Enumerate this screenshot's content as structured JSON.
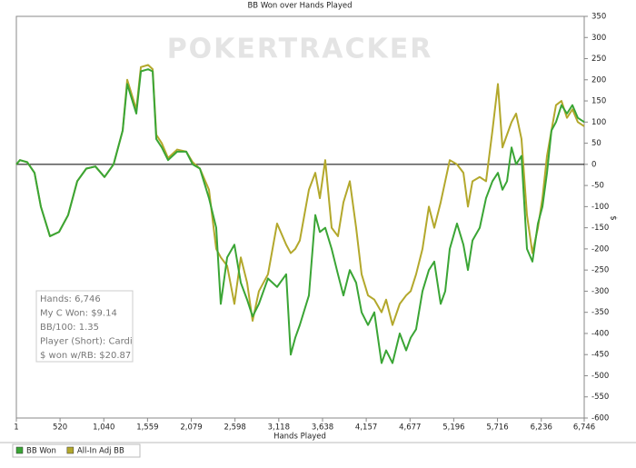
{
  "chart_data": {
    "type": "line",
    "title": "BB Won over Hands Played",
    "watermark": "POKERTRACKER",
    "x_label": "Hands Played",
    "y_label": "$",
    "x": [
      1,
      44,
      131,
      217,
      292,
      400,
      508,
      616,
      724,
      832,
      940,
      1048,
      1156,
      1264,
      1318,
      1426,
      1480,
      1566,
      1620,
      1663,
      1728,
      1803,
      1911,
      2019,
      2095,
      2181,
      2289,
      2375,
      2429,
      2505,
      2591,
      2667,
      2742,
      2807,
      2882,
      2990,
      3098,
      3206,
      3260,
      3314,
      3368,
      3476,
      3552,
      3606,
      3670,
      3746,
      3821,
      3886,
      3962,
      4037,
      4102,
      4178,
      4253,
      4339,
      4393,
      4469,
      4555,
      4631,
      4685,
      4749,
      4825,
      4901,
      4965,
      5041,
      5095,
      5149,
      5235,
      5311,
      5365,
      5419,
      5505,
      5580,
      5656,
      5721,
      5775,
      5829,
      5883,
      5937,
      6001,
      6066,
      6131,
      6196,
      6250,
      6304,
      6357,
      6411,
      6476,
      6541,
      6606,
      6670,
      6746
    ],
    "series": [
      {
        "name": "BB Won",
        "color": "#3aa535",
        "values": [
          0,
          10,
          5,
          -20,
          -100,
          -170,
          -160,
          -120,
          -40,
          -10,
          -5,
          -30,
          0,
          80,
          190,
          120,
          220,
          225,
          220,
          60,
          40,
          10,
          30,
          30,
          0,
          -10,
          -80,
          -150,
          -330,
          -220,
          -190,
          -280,
          -320,
          -360,
          -330,
          -270,
          -290,
          -260,
          -450,
          -410,
          -380,
          -310,
          -120,
          -160,
          -150,
          -200,
          -260,
          -310,
          -250,
          -280,
          -350,
          -380,
          -350,
          -470,
          -440,
          -470,
          -400,
          -440,
          -410,
          -390,
          -300,
          -250,
          -230,
          -330,
          -300,
          -200,
          -140,
          -190,
          -250,
          -180,
          -150,
          -80,
          -40,
          -20,
          -60,
          -40,
          40,
          0,
          20,
          -200,
          -230,
          -140,
          -100,
          -20,
          80,
          100,
          140,
          120,
          140,
          110,
          100
        ]
      },
      {
        "name": "All-In Adj BB",
        "color": "#b3a82c",
        "values": [
          0,
          10,
          5,
          -20,
          -100,
          -170,
          -160,
          -120,
          -40,
          -10,
          -5,
          -30,
          0,
          80,
          200,
          130,
          230,
          235,
          225,
          70,
          50,
          15,
          35,
          30,
          5,
          -10,
          -60,
          -200,
          -220,
          -240,
          -330,
          -220,
          -280,
          -370,
          -300,
          -260,
          -140,
          -190,
          -210,
          -200,
          -180,
          -60,
          -20,
          -80,
          10,
          -150,
          -170,
          -90,
          -40,
          -150,
          -260,
          -310,
          -320,
          -350,
          -320,
          -380,
          -330,
          -310,
          -300,
          -260,
          -200,
          -100,
          -150,
          -90,
          -40,
          10,
          0,
          -20,
          -100,
          -40,
          -30,
          -40,
          80,
          190,
          40,
          70,
          100,
          120,
          60,
          -120,
          -210,
          -150,
          -80,
          20,
          80,
          140,
          150,
          110,
          130,
          100,
          90
        ]
      }
    ],
    "xlim": [
      1,
      6746
    ],
    "xticks": [
      1,
      {
        "value": 520,
        "label": "520"
      },
      {
        "value": 1040,
        "label": "1,040"
      },
      {
        "value": 1559,
        "label": "1,559"
      },
      {
        "value": 2079,
        "label": "2,079"
      },
      {
        "value": 2598,
        "label": "2,598"
      },
      {
        "value": 3118,
        "label": "3,118"
      },
      {
        "value": 3638,
        "label": "3,638"
      },
      {
        "value": 4157,
        "label": "4,157"
      },
      {
        "value": 4677,
        "label": "4,677"
      },
      {
        "value": 5196,
        "label": "5,196"
      },
      {
        "value": 5716,
        "label": "5,716"
      },
      {
        "value": 6236,
        "label": "6,236"
      },
      {
        "value": 6746,
        "label": "6,746"
      }
    ],
    "ylim": [
      -600,
      350
    ],
    "yticks": [
      350,
      300,
      250,
      200,
      150,
      100,
      50,
      0,
      -50,
      -100,
      -150,
      -200,
      -250,
      -300,
      -350,
      -400,
      -450,
      -500,
      -550,
      -600
    ],
    "info_box": [
      "Hands: 6,746",
      "My C Won: $9.14",
      "BB/100: 1.35",
      "Player (Short): Cardi",
      "$ won w/RB: $20.87"
    ]
  }
}
